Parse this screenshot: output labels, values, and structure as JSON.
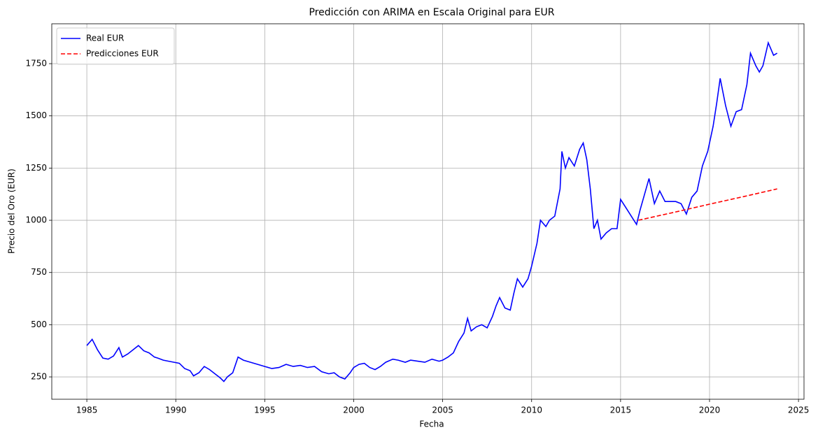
{
  "chart_data": {
    "type": "line",
    "title": "Predicción con ARIMA en Escala Original para EUR",
    "x_label": "Fecha",
    "y_label": "Precio del Oro (EUR)",
    "xlim": [
      1983.03,
      2025.31
    ],
    "ylim": [
      143,
      1941
    ],
    "xticks": [
      1985,
      1990,
      1995,
      2000,
      2005,
      2010,
      2015,
      2020,
      2025
    ],
    "yticks": [
      250,
      500,
      750,
      1000,
      1250,
      1500,
      1750
    ],
    "grid": true,
    "legend": "upper-left",
    "series": [
      {
        "name": "Real EUR",
        "color": "#0000ff",
        "style": "solid",
        "x": [
          1985.0,
          1985.3,
          1985.6,
          1985.9,
          1986.2,
          1986.5,
          1986.8,
          1987.0,
          1987.3,
          1987.6,
          1987.9,
          1988.2,
          1988.5,
          1988.8,
          1989.0,
          1989.3,
          1989.6,
          1989.9,
          1990.2,
          1990.5,
          1990.8,
          1991.0,
          1991.3,
          1991.6,
          1991.9,
          1992.2,
          1992.5,
          1992.7,
          1992.9,
          1993.2,
          1993.5,
          1993.8,
          1994.2,
          1994.6,
          1995.0,
          1995.4,
          1995.8,
          1996.2,
          1996.6,
          1997.0,
          1997.4,
          1997.8,
          1998.2,
          1998.6,
          1998.9,
          1999.2,
          1999.5,
          1999.8,
          2000.0,
          2000.3,
          2000.6,
          2000.9,
          2001.2,
          2001.5,
          2001.8,
          2002.2,
          2002.5,
          2002.9,
          2003.2,
          2003.6,
          2004.0,
          2004.4,
          2004.8,
          2005.0,
          2005.3,
          2005.6,
          2005.9,
          2006.2,
          2006.4,
          2006.6,
          2006.9,
          2007.2,
          2007.5,
          2007.8,
          2008.0,
          2008.2,
          2008.5,
          2008.8,
          2009.0,
          2009.2,
          2009.5,
          2009.8,
          2010.0,
          2010.3,
          2010.5,
          2010.8,
          2011.0,
          2011.3,
          2011.6,
          2011.7,
          2011.9,
          2012.1,
          2012.4,
          2012.7,
          2012.9,
          2013.1,
          2013.3,
          2013.5,
          2013.7,
          2013.9,
          2014.2,
          2014.5,
          2014.8,
          2015.0,
          2015.3,
          2015.6,
          2015.9,
          2016.1,
          2016.3,
          2016.6,
          2016.9,
          2017.2,
          2017.5,
          2017.8,
          2018.1,
          2018.4,
          2018.7,
          2019.0,
          2019.3,
          2019.6,
          2019.9,
          2020.2,
          2020.4,
          2020.6,
          2020.9,
          2021.2,
          2021.5,
          2021.8,
          2022.1,
          2022.3,
          2022.6,
          2022.8,
          2023.0,
          2023.3,
          2023.6,
          2023.8
        ],
        "values": [
          400,
          430,
          380,
          340,
          335,
          350,
          390,
          345,
          360,
          380,
          400,
          375,
          365,
          345,
          340,
          330,
          325,
          320,
          315,
          290,
          280,
          255,
          270,
          300,
          285,
          265,
          245,
          228,
          250,
          270,
          345,
          330,
          320,
          310,
          300,
          290,
          295,
          310,
          300,
          305,
          295,
          300,
          275,
          265,
          270,
          250,
          240,
          270,
          295,
          310,
          315,
          295,
          285,
          300,
          320,
          335,
          330,
          320,
          330,
          325,
          320,
          335,
          325,
          330,
          345,
          365,
          420,
          460,
          530,
          470,
          490,
          500,
          485,
          540,
          590,
          630,
          580,
          570,
          650,
          720,
          680,
          720,
          780,
          890,
          1000,
          970,
          1000,
          1020,
          1150,
          1330,
          1250,
          1300,
          1260,
          1340,
          1370,
          1290,
          1150,
          960,
          1000,
          910,
          940,
          960,
          960,
          1100,
          1060,
          1020,
          980,
          1050,
          1110,
          1200,
          1080,
          1140,
          1090,
          1090,
          1090,
          1080,
          1030,
          1110,
          1140,
          1260,
          1330,
          1450,
          1560,
          1680,
          1550,
          1450,
          1520,
          1530,
          1650,
          1800,
          1740,
          1710,
          1740,
          1850,
          1790,
          1800
        ]
      },
      {
        "name": "Predicciones EUR",
        "color": "#ff0000",
        "style": "dashed",
        "x": [
          2016.0,
          2018.0,
          2020.0,
          2022.0,
          2023.8
        ],
        "values": [
          1000,
          1038,
          1077,
          1115,
          1150
        ]
      }
    ]
  }
}
